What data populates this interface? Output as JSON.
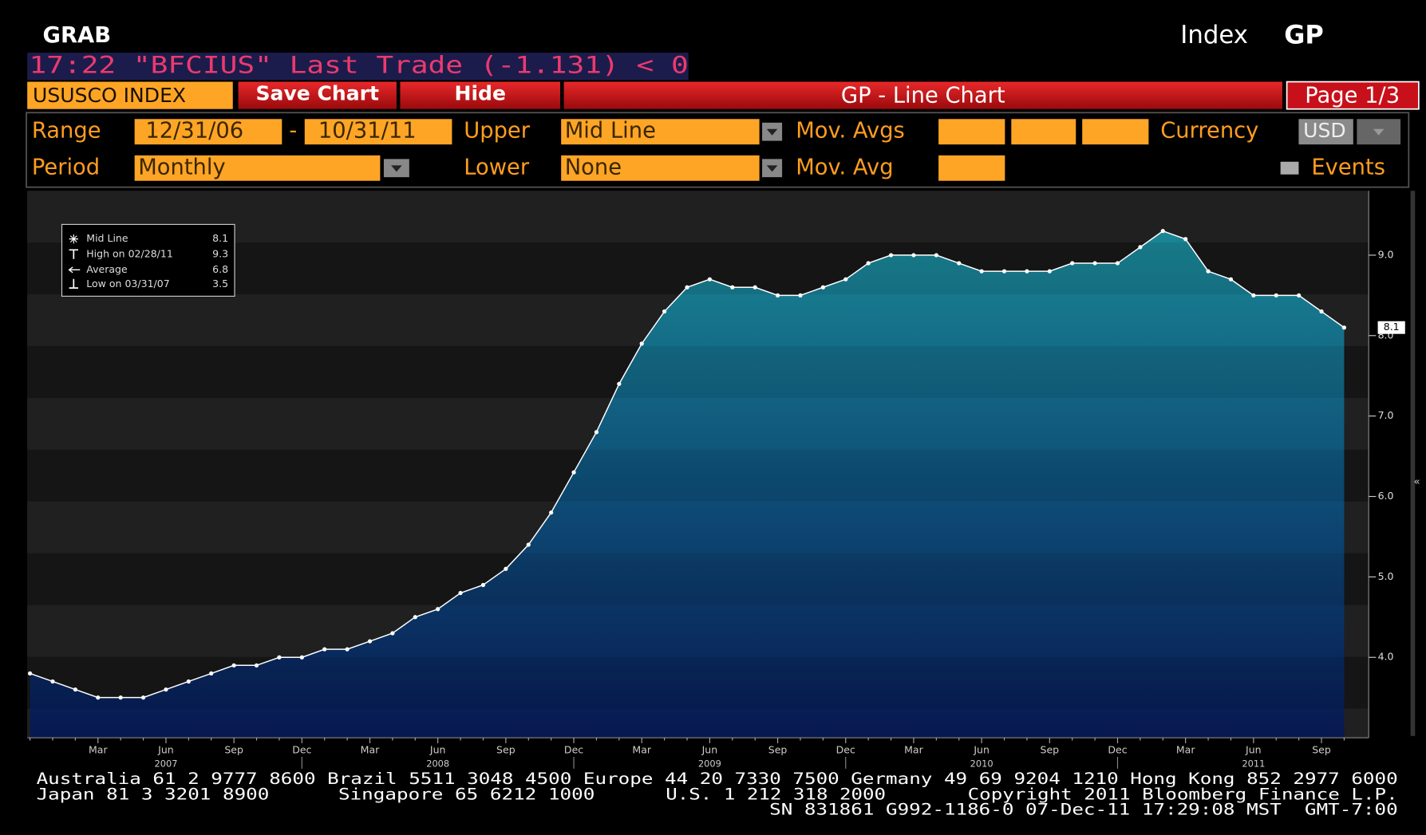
{
  "header": {
    "title": "GRAB",
    "security_type": "Index",
    "function": "GP"
  },
  "ticker_line": "17:22 \"BFCIUS\" Last Trade (-1.131) < 0",
  "toolbar": {
    "security": "USUSCO INDEX",
    "save": "Save Chart",
    "hide": "Hide",
    "chart_title": "GP - Line Chart",
    "page": "Page 1/3"
  },
  "controls": {
    "range_label": "Range",
    "range_start": "12/31/06",
    "range_sep": "-",
    "range_end": "10/31/11",
    "upper_label": "Upper",
    "upper_value": "Mid Line",
    "mov_avgs_label": "Mov. Avgs",
    "currency_label": "Currency",
    "currency_value": "USD",
    "period_label": "Period",
    "period_value": "Monthly",
    "lower_label": "Lower",
    "lower_value": "None",
    "mov_avg_label": "Mov. Avg",
    "events_label": "Events"
  },
  "chart_data": {
    "type": "line",
    "categories": [
      null,
      null,
      null,
      "Mar",
      null,
      null,
      "Jun",
      null,
      null,
      "Sep",
      null,
      null,
      "Dec",
      null,
      null,
      "Mar",
      null,
      null,
      "Jun",
      null,
      null,
      "Sep",
      null,
      null,
      "Dec",
      null,
      null,
      "Mar",
      null,
      null,
      "Jun",
      null,
      null,
      "Sep",
      null,
      null,
      "Dec",
      null,
      null,
      "Mar",
      null,
      null,
      "Jun",
      null,
      null,
      "Sep",
      null,
      null,
      "Dec",
      null,
      null,
      "Mar",
      null,
      null,
      "Jun",
      null,
      null,
      "Sep",
      null
    ],
    "years": [
      null,
      null,
      null,
      null,
      null,
      null,
      "2007",
      null,
      null,
      null,
      null,
      null,
      null,
      null,
      null,
      null,
      null,
      null,
      "2008",
      null,
      null,
      null,
      null,
      null,
      null,
      null,
      null,
      null,
      null,
      null,
      "2009",
      null,
      null,
      null,
      null,
      null,
      null,
      null,
      null,
      null,
      null,
      null,
      "2010",
      null,
      null,
      null,
      null,
      null,
      null,
      null,
      null,
      null,
      null,
      null,
      "2011",
      null,
      null,
      null,
      null
    ],
    "series": [
      {
        "name": "Mid Line",
        "color": "#ffffff",
        "values": [
          3.8,
          3.7,
          3.6,
          3.5,
          3.5,
          3.5,
          3.6,
          3.7,
          3.8,
          3.9,
          3.9,
          4.0,
          4.0,
          4.1,
          4.1,
          4.2,
          4.3,
          4.5,
          4.6,
          4.8,
          4.9,
          5.1,
          5.4,
          5.8,
          6.3,
          6.8,
          7.4,
          7.9,
          8.3,
          8.6,
          8.7,
          8.6,
          8.6,
          8.5,
          8.5,
          8.6,
          8.7,
          8.9,
          9.0,
          9.0,
          9.0,
          8.9,
          8.8,
          8.8,
          8.8,
          8.8,
          8.9,
          8.9,
          8.9,
          9.1,
          9.3,
          9.2,
          8.8,
          8.7,
          8.5,
          8.5,
          8.5,
          8.3,
          8.1
        ]
      }
    ],
    "ylim": [
      3.0,
      9.8
    ],
    "yticks": [
      {
        "value": 4,
        "label": "4.0"
      },
      {
        "value": 5,
        "label": "5.0"
      },
      {
        "value": 6,
        "label": "6.0"
      },
      {
        "value": 7,
        "label": "7.0"
      },
      {
        "value": 8,
        "label": "8.0"
      },
      {
        "value": 9,
        "label": "9.0"
      }
    ],
    "last_value": 8.1,
    "stats": [
      {
        "label": "High on 02/28/11",
        "value": 9.3
      },
      {
        "label": "Average",
        "value": 6.8
      },
      {
        "label": "Low on 03/31/07",
        "value": 3.5
      }
    ]
  },
  "collapse_icon": "«",
  "footer": {
    "line1": "Australia 61 2 9777 8600 Brazil 5511 3048 4500 Europe 44 20 7330 7500 Germany 49 69 9204 1210 Hong Kong 852 2977 6000",
    "line2": [
      "Japan 81 3 3201 8900",
      "Singapore 65 6212 1000",
      "U.S. 1 212 318 2000",
      "Copyright 2011 Bloomberg Finance L.P."
    ],
    "line3": "SN 831861 G992-1186-0 07-Dec-11 17:29:08 MST  GMT-7:00"
  }
}
